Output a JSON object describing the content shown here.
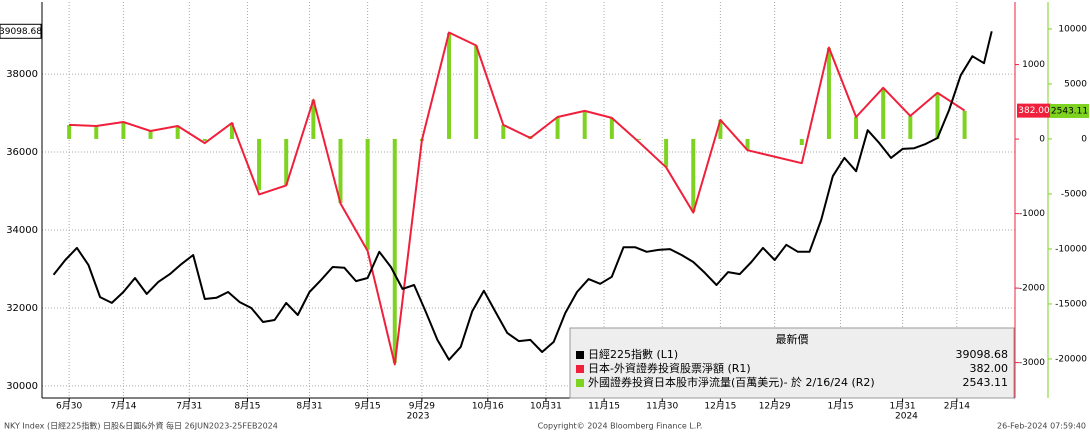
{
  "chart_data": {
    "type": "line",
    "xlim": [
      "2023-06-23",
      "2024-02-29"
    ],
    "xticks": [
      {
        "value": "2023-06-30",
        "label": "6月30"
      },
      {
        "value": "2023-07-14",
        "label": "7月14"
      },
      {
        "value": "2023-07-31",
        "label": "7月31"
      },
      {
        "value": "2023-08-15",
        "label": "8月15"
      },
      {
        "value": "2023-08-31",
        "label": "8月31"
      },
      {
        "value": "2023-09-15",
        "label": "9月15"
      },
      {
        "value": "2023-09-29",
        "label": "9月29"
      },
      {
        "value": "2023-10-16",
        "label": "10月16"
      },
      {
        "value": "2023-10-31",
        "label": "10月31"
      },
      {
        "value": "2023-11-15",
        "label": "11月15"
      },
      {
        "value": "2023-11-30",
        "label": "11月30"
      },
      {
        "value": "2023-12-15",
        "label": "12月15"
      },
      {
        "value": "2023-12-29",
        "label": "12月29"
      },
      {
        "value": "2024-01-15",
        "label": "1月15"
      },
      {
        "value": "2024-01-31",
        "label": "1月31"
      },
      {
        "value": "2024-02-14",
        "label": "2月14"
      }
    ],
    "annotations": [
      {
        "text": "2023",
        "x": "2023-09-28"
      },
      {
        "text": "2024",
        "x": "2024-02-01"
      }
    ],
    "ylim": [
      29690,
      39850
    ],
    "yticks": [
      30000,
      32000,
      34000,
      36000,
      38000
    ],
    "y2lim": [
      -3475,
      1840
    ],
    "y2ticks": [
      -3000,
      -2000,
      -1000,
      0,
      1000
    ],
    "y3lim": [
      -23550,
      12450
    ],
    "y3ticks": [
      -20000,
      -15000,
      -10000,
      -5000,
      0,
      5000,
      10000
    ],
    "grid": true,
    "legend_title": "最新價",
    "series": [
      {
        "name": "日經225指數 (L1)",
        "type": "line",
        "color": "#000000",
        "axis": "y",
        "x": [
          "2023-06-26",
          "2023-06-29",
          "2023-07-02",
          "2023-07-05",
          "2023-07-08",
          "2023-07-11",
          "2023-07-14",
          "2023-07-17",
          "2023-07-20",
          "2023-07-23",
          "2023-07-26",
          "2023-07-29",
          "2023-08-01",
          "2023-08-04",
          "2023-08-07",
          "2023-08-10",
          "2023-08-13",
          "2023-08-16",
          "2023-08-19",
          "2023-08-22",
          "2023-08-25",
          "2023-08-28",
          "2023-08-31",
          "2023-09-03",
          "2023-09-06",
          "2023-09-09",
          "2023-09-12",
          "2023-09-15",
          "2023-09-18",
          "2023-09-21",
          "2023-09-24",
          "2023-09-27",
          "2023-09-30",
          "2023-10-03",
          "2023-10-06",
          "2023-10-09",
          "2023-10-12",
          "2023-10-15",
          "2023-10-18",
          "2023-10-21",
          "2023-10-24",
          "2023-10-27",
          "2023-10-30",
          "2023-11-02",
          "2023-11-05",
          "2023-11-08",
          "2023-11-11",
          "2023-11-14",
          "2023-11-17",
          "2023-11-20",
          "2023-11-23",
          "2023-11-26",
          "2023-11-29",
          "2023-12-02",
          "2023-12-05",
          "2023-12-08",
          "2023-12-11",
          "2023-12-14",
          "2023-12-17",
          "2023-12-20",
          "2023-12-23",
          "2023-12-26",
          "2023-12-29",
          "2024-01-01",
          "2024-01-04",
          "2024-01-07",
          "2024-01-10",
          "2024-01-13",
          "2024-01-16",
          "2024-01-19",
          "2024-01-22",
          "2024-01-25",
          "2024-01-28",
          "2024-01-31",
          "2024-02-03",
          "2024-02-06",
          "2024-02-09",
          "2024-02-12",
          "2024-02-15",
          "2024-02-18",
          "2024-02-21",
          "2024-02-23"
        ],
        "values": [
          32850,
          33230,
          33540,
          33100,
          32280,
          32130,
          32410,
          32770,
          32360,
          32670,
          32870,
          33130,
          33360,
          32230,
          32260,
          32410,
          32150,
          32000,
          31640,
          31690,
          32130,
          31820,
          32410,
          32720,
          33050,
          33030,
          32690,
          32770,
          33440,
          33050,
          32490,
          32590,
          31900,
          31180,
          30670,
          31000,
          31920,
          32440,
          31900,
          31360,
          31150,
          31180,
          30870,
          31130,
          31870,
          32410,
          32740,
          32620,
          32800,
          33560,
          33560,
          33440,
          33490,
          33510,
          33360,
          33180,
          32900,
          32590,
          32920,
          32870,
          33180,
          33540,
          33230,
          33620,
          33440,
          33440,
          34260,
          35380,
          35850,
          35510,
          36560,
          36230,
          35850,
          36080,
          36100,
          36210,
          36360,
          37080,
          37970,
          38460,
          38280,
          39098.68
        ]
      },
      {
        "name": "日本-外資證券投資股票淨額 (R1)",
        "type": "line",
        "color": "#f0203c",
        "axis": "y2",
        "x": [
          "2023-06-30",
          "2023-07-07",
          "2023-07-14",
          "2023-07-21",
          "2023-07-28",
          "2023-08-04",
          "2023-08-11",
          "2023-08-18",
          "2023-08-25",
          "2023-09-01",
          "2023-09-08",
          "2023-09-15",
          "2023-09-22",
          "2023-09-29",
          "2023-10-06",
          "2023-10-13",
          "2023-10-20",
          "2023-10-27",
          "2023-11-03",
          "2023-11-10",
          "2023-11-17",
          "2023-11-24",
          "2023-12-01",
          "2023-12-08",
          "2023-12-15",
          "2023-12-22",
          "2024-01-05",
          "2024-01-12",
          "2024-01-19",
          "2024-01-26",
          "2024-02-02",
          "2024-02-09",
          "2024-02-16"
        ],
        "values": [
          190,
          176,
          230,
          108,
          176,
          -54,
          216,
          -743,
          -621,
          527,
          -864,
          -1500,
          -3024,
          -14,
          1431,
          1256,
          190,
          14,
          297,
          378,
          284,
          -41,
          -378,
          -986,
          257,
          -149,
          -324,
          1229,
          297,
          689,
          311,
          621,
          382
        ],
        "value_labels": [
          null,
          null,
          null,
          null,
          null,
          null,
          null,
          null,
          null,
          null,
          null,
          null,
          null,
          null,
          null,
          null,
          null,
          null,
          null,
          null,
          null,
          null,
          null,
          null,
          null,
          null,
          null,
          null,
          null,
          null,
          null,
          null,
          "382.00"
        ]
      },
      {
        "name": "外國證券投資日本股市淨流量(百萬美元)- 於 2/16/24 (R2)",
        "type": "bar",
        "color": "#7ed321",
        "axis": "y3",
        "x": [
          "2023-06-30",
          "2023-07-07",
          "2023-07-14",
          "2023-07-21",
          "2023-07-28",
          "2023-08-04",
          "2023-08-11",
          "2023-08-18",
          "2023-08-25",
          "2023-09-01",
          "2023-09-08",
          "2023-09-15",
          "2023-09-22",
          "2023-09-29",
          "2023-10-06",
          "2023-10-13",
          "2023-10-20",
          "2023-10-27",
          "2023-11-03",
          "2023-11-10",
          "2023-11-17",
          "2023-11-24",
          "2023-12-01",
          "2023-12-08",
          "2023-12-15",
          "2023-12-22",
          "2024-01-05",
          "2024-01-12",
          "2024-01-19",
          "2024-01-26",
          "2024-02-02",
          "2024-02-09",
          "2024-02-16"
        ],
        "values": [
          1270,
          1180,
          1550,
          730,
          1180,
          -180,
          1450,
          -4640,
          -4180,
          3550,
          -5820,
          -10090,
          -20360,
          -180,
          9640,
          8450,
          1270,
          270,
          2000,
          2550,
          1910,
          -90,
          -2550,
          -6640,
          1730,
          -1000,
          -550,
          8270,
          2000,
          4640,
          2090,
          4180,
          2543.11
        ]
      }
    ]
  },
  "footer": {
    "left": "NKY Index (日經225指數) 日股&日圓&外資  每日 26JUN2023-25FEB2024",
    "center": "Copyright© 2024 Bloomberg Finance L.P.",
    "right": "26-Feb-2024 07:59:40"
  }
}
